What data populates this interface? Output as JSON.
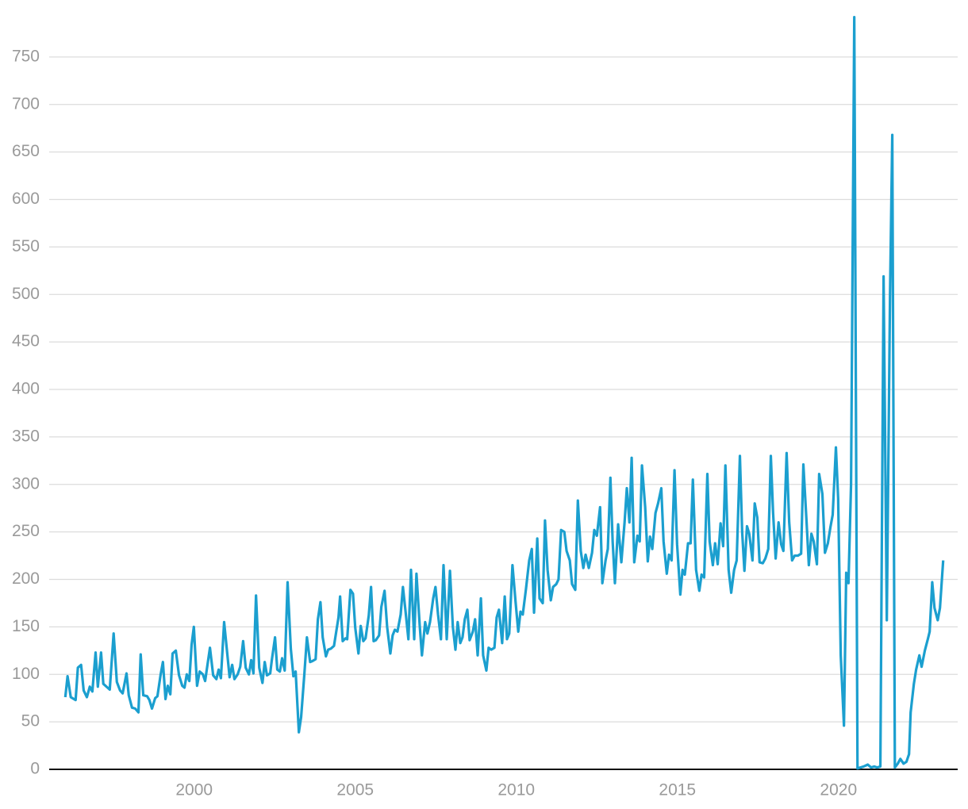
{
  "chart_data": {
    "type": "line",
    "color": "#1b9fcf",
    "grid": true,
    "xlim": [
      1995.5,
      2023.7
    ],
    "ylim": [
      0,
      800
    ],
    "xticks": [
      2000,
      2005,
      2010,
      2015,
      2020
    ],
    "yticks": [
      0,
      50,
      100,
      150,
      200,
      250,
      300,
      350,
      400,
      450,
      500,
      550,
      600,
      650,
      700,
      750
    ],
    "x": [
      1996.0,
      1996.07,
      1996.17,
      1996.32,
      1996.39,
      1996.49,
      1996.57,
      1996.67,
      1996.76,
      1996.84,
      1996.94,
      1997.01,
      1997.11,
      1997.18,
      1997.28,
      1997.38,
      1997.5,
      1997.6,
      1997.7,
      1997.78,
      1997.9,
      1997.97,
      1998.07,
      1998.17,
      1998.27,
      1998.34,
      1998.42,
      1998.54,
      1998.61,
      1998.69,
      1998.79,
      1998.86,
      1998.96,
      1999.03,
      1999.11,
      1999.18,
      1999.26,
      1999.33,
      1999.43,
      1999.53,
      1999.63,
      1999.7,
      1999.77,
      1999.85,
      1999.92,
      1999.99,
      2000.09,
      2000.17,
      2000.27,
      2000.34,
      2000.49,
      2000.59,
      2000.69,
      2000.76,
      2000.83,
      2000.93,
      2001.1,
      2001.18,
      2001.25,
      2001.35,
      2001.43,
      2001.52,
      2001.6,
      2001.7,
      2001.77,
      2001.84,
      2001.92,
      2002.02,
      2002.12,
      2002.19,
      2002.26,
      2002.36,
      2002.41,
      2002.51,
      2002.58,
      2002.66,
      2002.73,
      2002.81,
      2002.9,
      2003.0,
      2003.08,
      2003.15,
      2003.25,
      2003.32,
      2003.42,
      2003.5,
      2003.6,
      2003.67,
      2003.77,
      2003.84,
      2003.92,
      2003.99,
      2004.09,
      2004.16,
      2004.24,
      2004.34,
      2004.48,
      2004.53,
      2004.61,
      2004.7,
      2004.75,
      2004.85,
      2004.93,
      2005.0,
      2005.1,
      2005.17,
      2005.25,
      2005.32,
      2005.42,
      2005.49,
      2005.57,
      2005.64,
      2005.74,
      2005.81,
      2005.91,
      2005.99,
      2006.09,
      2006.16,
      2006.23,
      2006.31,
      2006.41,
      2006.48,
      2006.55,
      2006.65,
      2006.73,
      2006.83,
      2006.9,
      2007.0,
      2007.07,
      2007.17,
      2007.24,
      2007.32,
      2007.42,
      2007.49,
      2007.57,
      2007.66,
      2007.74,
      2007.84,
      2007.94,
      2008.03,
      2008.11,
      2008.18,
      2008.26,
      2008.33,
      2008.4,
      2008.48,
      2008.55,
      2008.65,
      2008.72,
      2008.8,
      2008.9,
      2008.97,
      2009.07,
      2009.14,
      2009.22,
      2009.32,
      2009.39,
      2009.46,
      2009.56,
      2009.64,
      2009.71,
      2009.78,
      2009.88,
      2009.98,
      2010.06,
      2010.13,
      2010.2,
      2010.3,
      2010.4,
      2010.48,
      2010.55,
      2010.65,
      2010.72,
      2010.82,
      2010.89,
      2010.97,
      2011.07,
      2011.14,
      2011.24,
      2011.31,
      2011.39,
      2011.49,
      2011.56,
      2011.66,
      2011.73,
      2011.83,
      2011.91,
      2012.0,
      2012.08,
      2012.15,
      2012.25,
      2012.35,
      2012.42,
      2012.5,
      2012.6,
      2012.67,
      2012.77,
      2012.84,
      2012.92,
      2012.99,
      2013.06,
      2013.16,
      2013.26,
      2013.36,
      2013.43,
      2013.51,
      2013.58,
      2013.66,
      2013.76,
      2013.83,
      2013.9,
      2014.0,
      2014.08,
      2014.15,
      2014.22,
      2014.32,
      2014.4,
      2014.5,
      2014.57,
      2014.67,
      2014.74,
      2014.82,
      2014.91,
      2014.99,
      2015.09,
      2015.16,
      2015.23,
      2015.33,
      2015.41,
      2015.48,
      2015.58,
      2015.68,
      2015.75,
      2015.83,
      2015.93,
      2016.0,
      2016.1,
      2016.17,
      2016.25,
      2016.34,
      2016.42,
      2016.49,
      2016.59,
      2016.67,
      2016.76,
      2016.84,
      2016.94,
      2017.01,
      2017.08,
      2017.16,
      2017.23,
      2017.33,
      2017.4,
      2017.48,
      2017.55,
      2017.65,
      2017.73,
      2017.82,
      2017.9,
      2017.97,
      2018.05,
      2018.14,
      2018.22,
      2018.29,
      2018.39,
      2018.47,
      2018.56,
      2018.64,
      2018.74,
      2018.84,
      2018.91,
      2019.01,
      2019.08,
      2019.16,
      2019.23,
      2019.33,
      2019.4,
      2019.5,
      2019.58,
      2019.67,
      2019.75,
      2019.82,
      2019.92,
      2019.99,
      2020.07,
      2020.17,
      2020.24,
      2020.31,
      2020.39,
      2020.49,
      2020.59,
      2020.68,
      2020.78,
      2020.91,
      2021.01,
      2021.11,
      2021.2,
      2021.3,
      2021.4,
      2021.5,
      2021.6,
      2021.67,
      2021.75,
      2021.84,
      2021.92,
      2022.02,
      2022.11,
      2022.19,
      2022.24,
      2022.34,
      2022.41,
      2022.51,
      2022.58,
      2022.68,
      2022.78,
      2022.83,
      2022.91,
      2022.98,
      2023.08,
      2023.15,
      2023.25
    ],
    "values": [
      76,
      98,
      76,
      73,
      107,
      110,
      83,
      76,
      87,
      82,
      123,
      87,
      123,
      90,
      87,
      84,
      143,
      92,
      83,
      80,
      101,
      78,
      65,
      64,
      60,
      121,
      78,
      77,
      73,
      64,
      75,
      77,
      100,
      113,
      74,
      88,
      79,
      122,
      125,
      99,
      88,
      86,
      100,
      93,
      131,
      150,
      88,
      103,
      100,
      93,
      128,
      99,
      95,
      105,
      96,
      155,
      97,
      110,
      95,
      100,
      108,
      135,
      107,
      100,
      115,
      101,
      183,
      107,
      91,
      113,
      99,
      101,
      115,
      139,
      105,
      103,
      117,
      104,
      197,
      127,
      98,
      103,
      39,
      55,
      100,
      139,
      113,
      114,
      116,
      158,
      176,
      139,
      119,
      126,
      127,
      130,
      160,
      182,
      135,
      138,
      137,
      189,
      185,
      149,
      122,
      151,
      135,
      138,
      162,
      192,
      135,
      136,
      141,
      171,
      188,
      150,
      122,
      141,
      147,
      145,
      163,
      192,
      170,
      137,
      210,
      137,
      206,
      152,
      120,
      155,
      143,
      155,
      180,
      192,
      163,
      137,
      215,
      137,
      209,
      150,
      126,
      155,
      133,
      139,
      158,
      168,
      136,
      145,
      158,
      120,
      180,
      120,
      104,
      128,
      126,
      128,
      160,
      168,
      133,
      182,
      137,
      143,
      215,
      175,
      145,
      166,
      163,
      190,
      220,
      232,
      165,
      243,
      180,
      175,
      262,
      210,
      178,
      192,
      195,
      200,
      252,
      250,
      230,
      220,
      195,
      189,
      283,
      230,
      212,
      226,
      212,
      228,
      252,
      246,
      276,
      196,
      220,
      232,
      307,
      240,
      196,
      258,
      218,
      260,
      296,
      260,
      328,
      218,
      246,
      240,
      320,
      276,
      219,
      245,
      232,
      270,
      280,
      296,
      240,
      206,
      226,
      220,
      315,
      237,
      184,
      210,
      205,
      238,
      238,
      305,
      210,
      188,
      205,
      202,
      311,
      240,
      215,
      238,
      216,
      259,
      235,
      320,
      210,
      186,
      210,
      220,
      330,
      250,
      209,
      256,
      248,
      220,
      280,
      265,
      218,
      217,
      222,
      232,
      330,
      270,
      222,
      260,
      237,
      230,
      333,
      260,
      220,
      225,
      225,
      227,
      321,
      260,
      215,
      248,
      240,
      216,
      311,
      290,
      228,
      238,
      255,
      268,
      339,
      285,
      120,
      46,
      207,
      196,
      300,
      792,
      1,
      2,
      3,
      5,
      2,
      3,
      2,
      3,
      519,
      157,
      500,
      668,
      2,
      6,
      11,
      6,
      8,
      16,
      60,
      90,
      105,
      120,
      108,
      125,
      138,
      145,
      197,
      170,
      157,
      170,
      220
    ]
  }
}
